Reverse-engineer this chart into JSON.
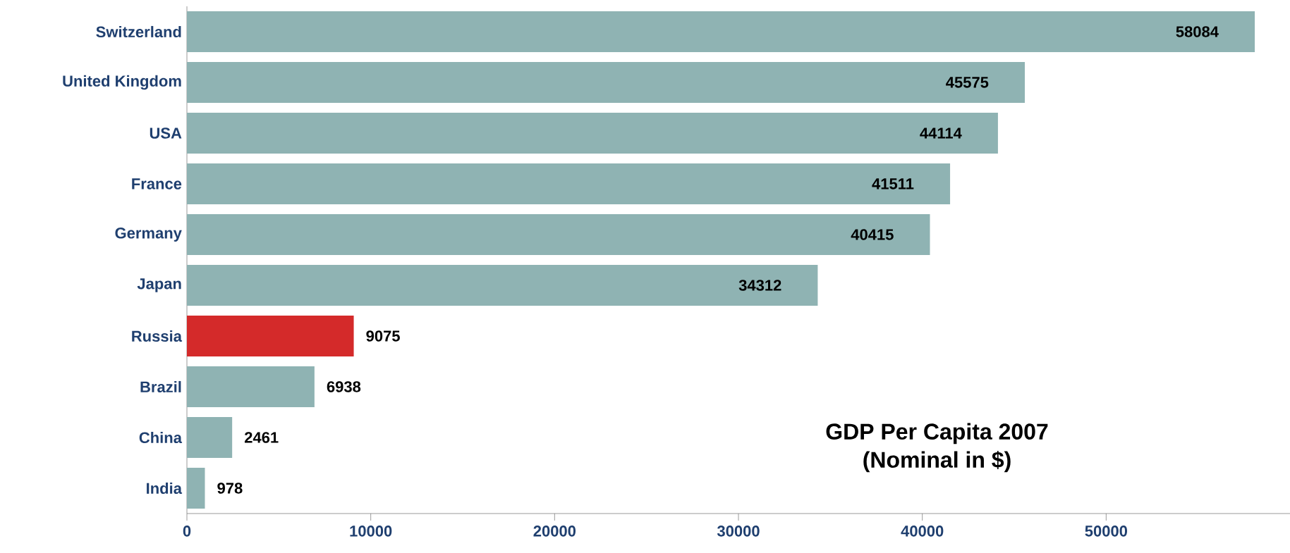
{
  "chart_data": {
    "type": "bar",
    "orientation": "horizontal",
    "title": "GDP Per Capita 2007",
    "subtitle": "(Nominal in $)",
    "categories": [
      "Switzerland",
      "United Kingdom",
      "USA",
      "France",
      "Germany",
      "Japan",
      "Russia",
      "Brazil",
      "China",
      "India"
    ],
    "values": [
      58084,
      45575,
      44114,
      41511,
      40415,
      34312,
      9075,
      6938,
      2461,
      978
    ],
    "colors": [
      "#8fb3b3",
      "#8fb3b3",
      "#8fb3b3",
      "#8fb3b3",
      "#8fb3b3",
      "#8fb3b3",
      "#d42a2a",
      "#8fb3b3",
      "#8fb3b3",
      "#8fb3b3"
    ],
    "xlim": [
      0,
      60000
    ],
    "xticks": [
      0,
      10000,
      20000,
      30000,
      40000,
      50000
    ],
    "data_labels": true,
    "grid": false
  }
}
